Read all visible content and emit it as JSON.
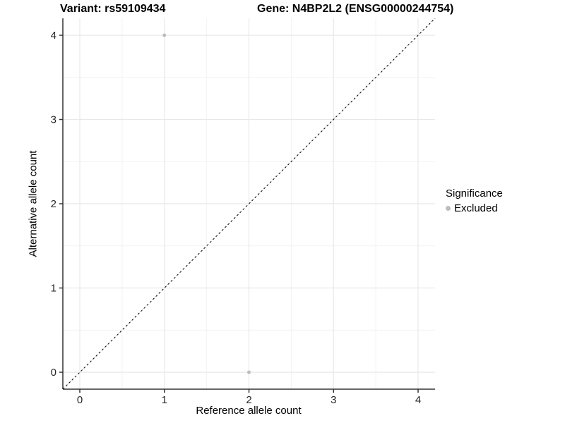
{
  "titles": {
    "left": "Variant: rs59109434",
    "right": "Gene: N4BP2L2 (ENSG00000244754)"
  },
  "colors": {
    "background": "#ffffff",
    "grid_major": "#e8e8e8",
    "grid_minor": "#f2f2f2",
    "axis_line": "#333333",
    "tick_label": "#262626",
    "point": "#bdbdbd",
    "reference_line": "#000000"
  },
  "chart_data": {
    "type": "scatter",
    "title": "Variant: rs59109434   |   Gene: N4BP2L2 (ENSG00000244754)",
    "xlabel": "Reference allele count",
    "ylabel": "Alternative allele count",
    "xlim": [
      -0.2,
      4.2
    ],
    "ylim": [
      -0.2,
      4.2
    ],
    "x_ticks": [
      0,
      1,
      2,
      3,
      4
    ],
    "y_ticks": [
      0,
      1,
      2,
      3,
      4
    ],
    "grid": "major+minor",
    "reference_line": {
      "type": "identity y=x",
      "style": "dashed",
      "color": "#000000"
    },
    "series": [
      {
        "name": "Excluded",
        "color": "#bdbdbd",
        "points": [
          {
            "x": 1,
            "y": 4
          },
          {
            "x": 2,
            "y": 0
          }
        ]
      }
    ],
    "legend": {
      "title": "Significance",
      "position": "right",
      "entries": [
        {
          "label": "Excluded",
          "color": "#bdbdbd"
        }
      ]
    }
  }
}
